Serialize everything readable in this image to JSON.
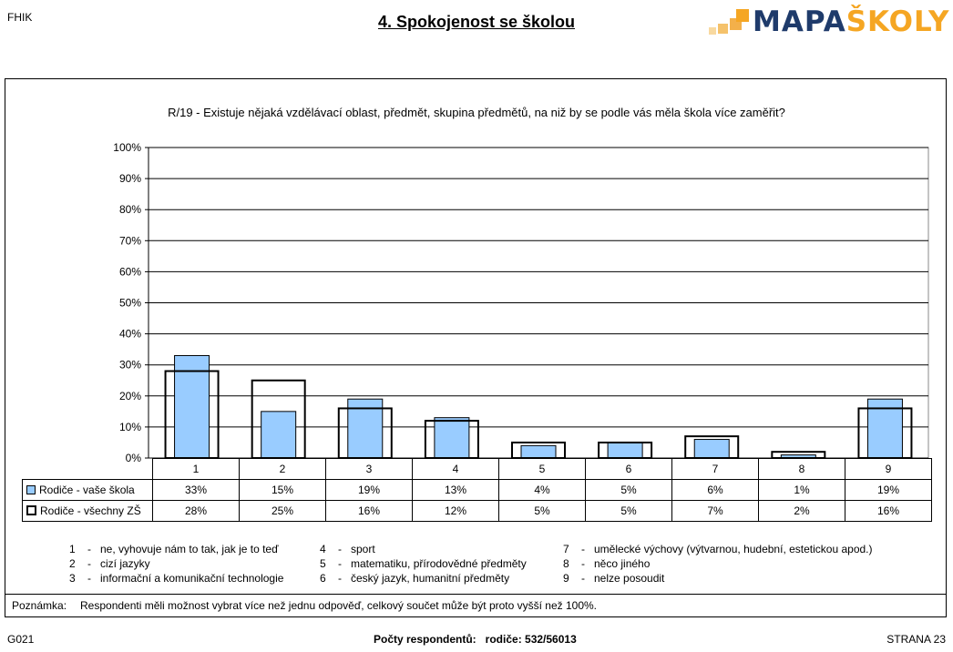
{
  "header": {
    "school_code": "FHIK",
    "title": "4. Spokojenost se školou",
    "logo_text_a": "MAPA",
    "logo_text_b": "ŠKOLY",
    "logo_color_a": "#1f3b6b",
    "logo_color_b": "#f5a623"
  },
  "question": "R/19 - Existuje nějaká vzdělávací oblast, předmět, skupina předmětů, na niž by se podle vás měla škola více zaměřit?",
  "chart_data": {
    "type": "bar",
    "categories": [
      "1",
      "2",
      "3",
      "4",
      "5",
      "6",
      "7",
      "8",
      "9"
    ],
    "ylim": [
      0,
      100
    ],
    "yticks": [
      "0%",
      "10%",
      "20%",
      "30%",
      "40%",
      "50%",
      "60%",
      "70%",
      "80%",
      "90%",
      "100%"
    ],
    "grid": true,
    "series": [
      {
        "name": "Rodiče - vaše škola",
        "style": "filled",
        "color": "#99ccff",
        "values": [
          33,
          15,
          19,
          13,
          4,
          5,
          6,
          1,
          19
        ],
        "labels": [
          "33%",
          "15%",
          "19%",
          "13%",
          "4%",
          "5%",
          "6%",
          "1%",
          "19%"
        ]
      },
      {
        "name": "Rodiče - všechny ZŠ",
        "style": "outline",
        "color": "#000000",
        "values": [
          28,
          25,
          16,
          12,
          5,
          5,
          7,
          2,
          16
        ],
        "labels": [
          "28%",
          "25%",
          "16%",
          "12%",
          "5%",
          "5%",
          "7%",
          "2%",
          "16%"
        ]
      }
    ]
  },
  "legend": [
    {
      "num": "1",
      "text": "ne, vyhovuje nám to tak, jak je to teď"
    },
    {
      "num": "2",
      "text": "cizí jazyky"
    },
    {
      "num": "3",
      "text": "informační a komunikační technologie"
    },
    {
      "num": "4",
      "text": "sport"
    },
    {
      "num": "5",
      "text": "matematiku, přírodovědné předměty"
    },
    {
      "num": "6",
      "text": "český jazyk, humanitní předměty"
    },
    {
      "num": "7",
      "text": "umělecké výchovy (výtvarnou, hudební, estetickou apod.)"
    },
    {
      "num": "8",
      "text": "něco jiného"
    },
    {
      "num": "9",
      "text": "nelze posoudit"
    }
  ],
  "note": {
    "label": "Poznámka:",
    "text": "Respondenti měli možnost vybrat více než jednu odpověď, celkový součet může být proto vyšší než 100%."
  },
  "footer": {
    "code": "G021",
    "respondents": "Počty respondentů:   rodiče: 532/56013",
    "page": "STRANA 23"
  }
}
